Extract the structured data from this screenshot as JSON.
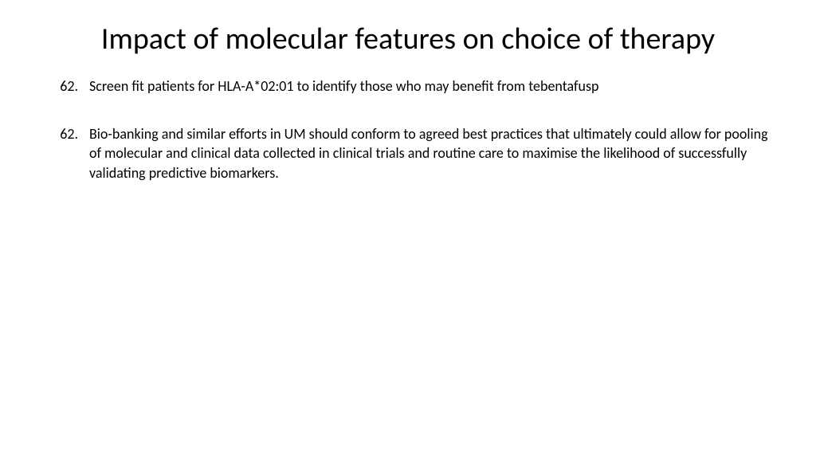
{
  "slide": {
    "title": "Impact of molecular features on choice of therapy",
    "title_fontsize": 38,
    "title_color": "#000000",
    "body_fontsize": 18,
    "body_color": "#000000",
    "background_color": "#ffffff",
    "items": [
      {
        "number": "62.",
        "text": "Screen fit patients for HLA-A*02:01 to identify those who may benefit from tebentafusp"
      },
      {
        "number": "62.",
        "text": "Bio-banking and similar efforts in UM should conform to agreed best practices that ultimately could allow for pooling of molecular and clinical data collected in clinical trials and routine care to maximise the likelihood of successfully validating predictive biomarkers."
      }
    ]
  }
}
